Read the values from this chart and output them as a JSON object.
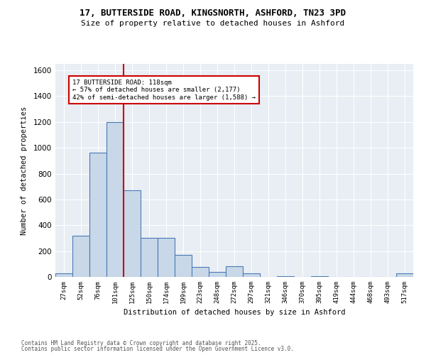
{
  "title1": "17, BUTTERSIDE ROAD, KINGSNORTH, ASHFORD, TN23 3PD",
  "title2": "Size of property relative to detached houses in Ashford",
  "xlabel": "Distribution of detached houses by size in Ashford",
  "ylabel": "Number of detached properties",
  "categories": [
    "27sqm",
    "52sqm",
    "76sqm",
    "101sqm",
    "125sqm",
    "150sqm",
    "174sqm",
    "199sqm",
    "223sqm",
    "248sqm",
    "272sqm",
    "297sqm",
    "321sqm",
    "346sqm",
    "370sqm",
    "395sqm",
    "419sqm",
    "444sqm",
    "468sqm",
    "493sqm",
    "517sqm"
  ],
  "values": [
    30,
    320,
    960,
    1200,
    670,
    300,
    300,
    170,
    75,
    40,
    80,
    30,
    0,
    5,
    0,
    5,
    0,
    0,
    0,
    0,
    30
  ],
  "bar_color": "#c8d8e8",
  "bar_edgecolor": "#4a7ab5",
  "vline_color": "#cc0000",
  "annotation_text": "17 BUTTERSIDE ROAD: 118sqm\n← 57% of detached houses are smaller (2,177)\n42% of semi-detached houses are larger (1,588) →",
  "annotation_box_color": "#ffffff",
  "annotation_box_edgecolor": "#cc0000",
  "ylim": [
    0,
    1650
  ],
  "yticks": [
    0,
    200,
    400,
    600,
    800,
    1000,
    1200,
    1400,
    1600
  ],
  "background_color": "#e8eef4",
  "footer1": "Contains HM Land Registry data © Crown copyright and database right 2025.",
  "footer2": "Contains public sector information licensed under the Open Government Licence v3.0."
}
